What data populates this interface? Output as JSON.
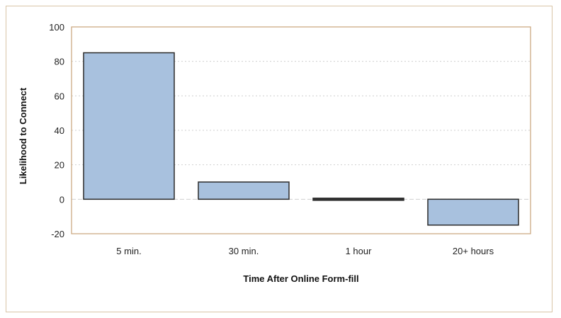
{
  "chart_data": {
    "type": "bar",
    "categories": [
      "5 min.",
      "30 min.",
      "1 hour",
      "20+ hours"
    ],
    "values": [
      85,
      10,
      1,
      -15
    ],
    "title": "",
    "xlabel": "Time After Online Form-fill",
    "ylabel": "Likelihood to Connect",
    "ylim": [
      -20,
      100
    ],
    "yticks": [
      100,
      80,
      60,
      40,
      20,
      0,
      -20
    ],
    "grid": true,
    "colors": {
      "bar_fill": "#a8c1de",
      "bar_stroke": "#2a2a2a",
      "plot_border": "#c9a47a",
      "grid": "#cfcfcf",
      "frame": "#d8c4a6"
    }
  }
}
